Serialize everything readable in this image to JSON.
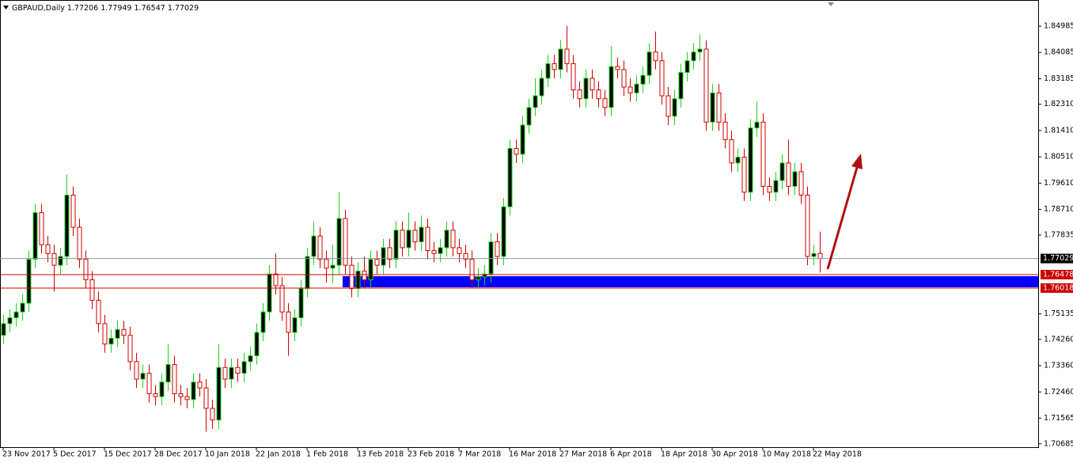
{
  "chart_data": {
    "type": "candlestick",
    "symbol": "GBPAUD,Daily",
    "categories": [
      "23 Nov 2017",
      null,
      null,
      null,
      null,
      null,
      null,
      null,
      "5 Dec 2017",
      null,
      null,
      null,
      null,
      null,
      null,
      null,
      "15 Dec 2017",
      null,
      null,
      null,
      null,
      null,
      null,
      null,
      "28 Dec 2017",
      null,
      null,
      null,
      null,
      null,
      null,
      null,
      "10 Jan 2018",
      null,
      null,
      null,
      null,
      null,
      null,
      null,
      "22 Jan 2018",
      null,
      null,
      null,
      null,
      null,
      null,
      null,
      "1 Feb 2018",
      null,
      null,
      null,
      null,
      null,
      null,
      null,
      "13 Feb 2018",
      null,
      null,
      null,
      null,
      null,
      null,
      null,
      "23 Feb 2018",
      null,
      null,
      null,
      null,
      null,
      null,
      null,
      "7 Mar 2018",
      null,
      null,
      null,
      null,
      null,
      null,
      null,
      "16 Mar 2018",
      null,
      null,
      null,
      null,
      null,
      null,
      null,
      "27 Mar 2018",
      null,
      null,
      null,
      null,
      null,
      null,
      null,
      "6 Apr 2018",
      null,
      null,
      null,
      null,
      null,
      null,
      null,
      "18 Apr 2018",
      null,
      null,
      null,
      null,
      null,
      null,
      null,
      "30 Apr 2018",
      null,
      null,
      null,
      null,
      null,
      null,
      null,
      "10 May 2018",
      null,
      null,
      null,
      null,
      null,
      null,
      null,
      "22 May 2018",
      null
    ],
    "open": [
      1.744,
      1.748,
      1.75,
      1.752,
      1.755,
      1.77,
      1.786,
      1.775,
      1.772,
      1.768,
      1.771,
      1.792,
      1.781,
      1.77,
      1.763,
      1.756,
      1.748,
      1.741,
      1.743,
      1.746,
      1.744,
      1.735,
      1.729,
      1.731,
      1.724,
      1.723,
      1.728,
      1.734,
      1.724,
      1.723,
      1.722,
      1.728,
      1.726,
      1.719,
      1.715,
      1.733,
      1.729,
      1.733,
      1.731,
      1.735,
      1.737,
      1.745,
      1.752,
      1.765,
      1.761,
      1.752,
      1.745,
      1.75,
      1.76,
      1.771,
      1.778,
      1.77,
      1.767,
      1.768,
      1.784,
      1.768,
      1.76,
      1.766,
      1.763,
      1.77,
      1.768,
      1.774,
      1.77,
      1.78,
      1.774,
      1.78,
      1.776,
      1.781,
      1.773,
      1.772,
      1.774,
      1.78,
      1.774,
      1.772,
      1.77,
      1.763,
      1.764,
      1.765,
      1.776,
      1.771,
      1.788,
      1.808,
      1.806,
      1.816,
      1.822,
      1.826,
      1.832,
      1.837,
      1.835,
      1.842,
      1.837,
      1.828,
      1.825,
      1.832,
      1.828,
      1.825,
      1.822,
      1.836,
      1.835,
      1.829,
      1.827,
      1.83,
      1.833,
      1.841,
      1.838,
      1.826,
      1.819,
      1.825,
      1.834,
      1.838,
      1.841,
      1.842,
      1.817,
      1.827,
      1.817,
      1.811,
      1.803,
      1.805,
      1.793,
      1.815,
      1.817,
      1.795,
      1.793,
      1.797,
      1.803,
      1.795,
      1.8,
      1.792,
      1.771,
      1.77206
    ],
    "high": [
      1.751,
      1.753,
      1.755,
      1.758,
      1.773,
      1.789,
      1.789,
      1.778,
      1.775,
      1.774,
      1.799,
      1.795,
      1.784,
      1.773,
      1.766,
      1.759,
      1.751,
      1.746,
      1.749,
      1.749,
      1.747,
      1.738,
      1.734,
      1.734,
      1.727,
      1.731,
      1.741,
      1.737,
      1.727,
      1.726,
      1.731,
      1.731,
      1.729,
      1.722,
      1.741,
      1.736,
      1.736,
      1.736,
      1.738,
      1.74,
      1.748,
      1.755,
      1.768,
      1.772,
      1.764,
      1.755,
      1.753,
      1.763,
      1.774,
      1.783,
      1.781,
      1.773,
      1.775,
      1.793,
      1.787,
      1.771,
      1.769,
      1.771,
      1.773,
      1.773,
      1.777,
      1.777,
      1.783,
      1.783,
      1.786,
      1.783,
      1.785,
      1.784,
      1.776,
      1.777,
      1.783,
      1.783,
      1.777,
      1.775,
      1.773,
      1.767,
      1.768,
      1.779,
      1.779,
      1.791,
      1.811,
      1.811,
      1.819,
      1.825,
      1.832,
      1.835,
      1.84,
      1.84,
      1.845,
      1.85,
      1.84,
      1.831,
      1.835,
      1.835,
      1.831,
      1.828,
      1.843,
      1.839,
      1.838,
      1.832,
      1.833,
      1.836,
      1.844,
      1.848,
      1.841,
      1.829,
      1.828,
      1.837,
      1.841,
      1.844,
      1.847,
      1.845,
      1.83,
      1.83,
      1.82,
      1.814,
      1.808,
      1.808,
      1.818,
      1.824,
      1.82,
      1.798,
      1.8,
      1.806,
      1.811,
      1.803,
      1.803,
      1.795,
      1.775,
      1.77949
    ],
    "low": [
      1.741,
      1.745,
      1.747,
      1.749,
      1.752,
      1.767,
      1.772,
      1.769,
      1.759,
      1.765,
      1.768,
      1.778,
      1.767,
      1.76,
      1.753,
      1.745,
      1.738,
      1.738,
      1.74,
      1.741,
      1.732,
      1.726,
      1.726,
      1.721,
      1.72,
      1.72,
      1.725,
      1.721,
      1.72,
      1.719,
      1.719,
      1.723,
      1.711,
      1.712,
      1.712,
      1.726,
      1.726,
      1.728,
      1.728,
      1.732,
      1.734,
      1.742,
      1.749,
      1.758,
      1.749,
      1.737,
      1.742,
      1.747,
      1.757,
      1.768,
      1.767,
      1.762,
      1.762,
      1.765,
      1.765,
      1.757,
      1.757,
      1.76,
      1.76,
      1.765,
      1.765,
      1.767,
      1.767,
      1.771,
      1.771,
      1.773,
      1.773,
      1.77,
      1.769,
      1.769,
      1.771,
      1.771,
      1.769,
      1.767,
      1.76,
      1.76,
      1.761,
      1.762,
      1.768,
      1.768,
      1.785,
      1.803,
      1.803,
      1.813,
      1.819,
      1.823,
      1.829,
      1.832,
      1.832,
      1.834,
      1.825,
      1.822,
      1.822,
      1.825,
      1.822,
      1.819,
      1.819,
      1.832,
      1.826,
      1.824,
      1.824,
      1.827,
      1.83,
      1.835,
      1.823,
      1.816,
      1.816,
      1.822,
      1.831,
      1.835,
      1.838,
      1.814,
      1.814,
      1.814,
      1.808,
      1.8,
      1.8,
      1.79,
      1.79,
      1.812,
      1.792,
      1.79,
      1.79,
      1.794,
      1.792,
      1.792,
      1.789,
      1.768,
      1.768,
      1.76547
    ],
    "close": [
      1.748,
      1.75,
      1.752,
      1.755,
      1.77,
      1.786,
      1.775,
      1.772,
      1.768,
      1.771,
      1.792,
      1.781,
      1.77,
      1.763,
      1.756,
      1.748,
      1.741,
      1.743,
      1.746,
      1.744,
      1.735,
      1.729,
      1.731,
      1.724,
      1.723,
      1.728,
      1.734,
      1.724,
      1.723,
      1.722,
      1.728,
      1.726,
      1.719,
      1.715,
      1.733,
      1.729,
      1.733,
      1.731,
      1.735,
      1.737,
      1.745,
      1.752,
      1.765,
      1.761,
      1.752,
      1.745,
      1.75,
      1.76,
      1.771,
      1.778,
      1.77,
      1.767,
      1.768,
      1.784,
      1.768,
      1.76,
      1.766,
      1.763,
      1.77,
      1.768,
      1.774,
      1.77,
      1.78,
      1.774,
      1.78,
      1.776,
      1.781,
      1.773,
      1.772,
      1.774,
      1.78,
      1.774,
      1.772,
      1.77,
      1.763,
      1.764,
      1.765,
      1.776,
      1.771,
      1.788,
      1.808,
      1.806,
      1.816,
      1.822,
      1.826,
      1.832,
      1.837,
      1.835,
      1.842,
      1.837,
      1.828,
      1.825,
      1.832,
      1.828,
      1.825,
      1.822,
      1.836,
      1.835,
      1.829,
      1.827,
      1.83,
      1.833,
      1.841,
      1.838,
      1.826,
      1.819,
      1.825,
      1.834,
      1.838,
      1.841,
      1.842,
      1.817,
      1.827,
      1.817,
      1.811,
      1.803,
      1.805,
      1.793,
      1.815,
      1.817,
      1.795,
      1.793,
      1.797,
      1.803,
      1.795,
      1.8,
      1.792,
      1.771,
      1.772,
      1.77029
    ],
    "bull_body": "#000000",
    "bull_line": "#22cc22",
    "bear_body": "#ffffff",
    "bear_line": "#cc0000",
    "levels": [
      1.76478,
      1.76018
    ],
    "level_color": "#cc0000",
    "zone_color": "#0000ff",
    "price_line_color": "#8a9a9a",
    "ylim": [
      1.7057,
      1.8588
    ],
    "yticks": [
      1.84985,
      1.84085,
      1.83185,
      {
        "value": 1.8231,
        "label": "1.82310"
      },
      {
        "value": 1.8141,
        "label": "1.81410"
      },
      {
        "value": 1.8051,
        "label": "1.80510"
      },
      {
        "value": 1.7961,
        "label": "1.79610"
      },
      {
        "value": 1.7871,
        "label": "1.78710"
      },
      1.77835,
      1.75135,
      {
        "value": 1.7426,
        "label": "1.74260"
      },
      {
        "value": 1.7336,
        "label": "1.73360"
      },
      {
        "value": 1.7246,
        "label": "1.72460"
      },
      1.71565,
      1.70685
    ]
  }
}
